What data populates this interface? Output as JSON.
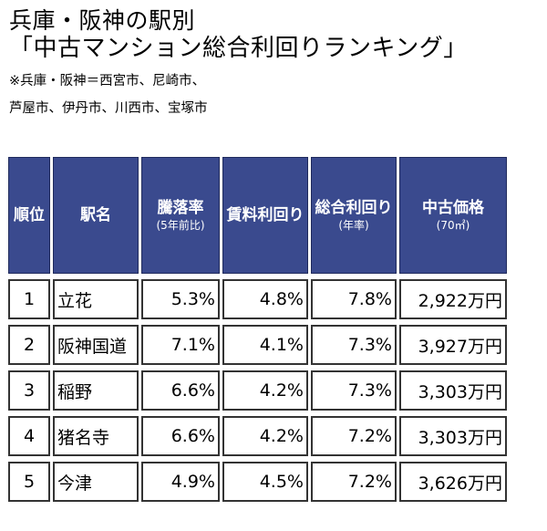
{
  "title": {
    "line1": "兵庫・阪神の駅別",
    "line2": "「中古マンション総合利回りランキング」",
    "note1": "※兵庫・阪神＝西宮市、尼崎市、",
    "note2": "芦屋市、伊丹市、川西市、宝塚市"
  },
  "table": {
    "headers": {
      "rank": "順位",
      "station": "駅名",
      "appreciation": "騰落率",
      "appreciation_sub": "(5年前比)",
      "rent_yield": "賃料利回り",
      "total_yield": "総合利回り",
      "total_yield_sub": "(年率)",
      "price": "中古価格",
      "price_sub": "(70㎡)"
    },
    "rows": [
      {
        "rank": "1",
        "station": "立花",
        "appreciation": "5.3%",
        "rent_yield": "4.8%",
        "total_yield": "7.8%",
        "price": "2,922万円"
      },
      {
        "rank": "2",
        "station": "阪神国道",
        "appreciation": "7.1%",
        "rent_yield": "4.1%",
        "total_yield": "7.3%",
        "price": "3,927万円"
      },
      {
        "rank": "3",
        "station": "稲野",
        "appreciation": "6.6%",
        "rent_yield": "4.2%",
        "total_yield": "7.3%",
        "price": "3,303万円"
      },
      {
        "rank": "4",
        "station": "猪名寺",
        "appreciation": "6.6%",
        "rent_yield": "4.2%",
        "total_yield": "7.2%",
        "price": "3,303万円"
      },
      {
        "rank": "5",
        "station": "今津",
        "appreciation": "4.9%",
        "rent_yield": "4.5%",
        "total_yield": "7.2%",
        "price": "3,626万円"
      }
    ]
  },
  "colors": {
    "header_bg": "#3a4a8e",
    "highlight": "#f26a68"
  }
}
